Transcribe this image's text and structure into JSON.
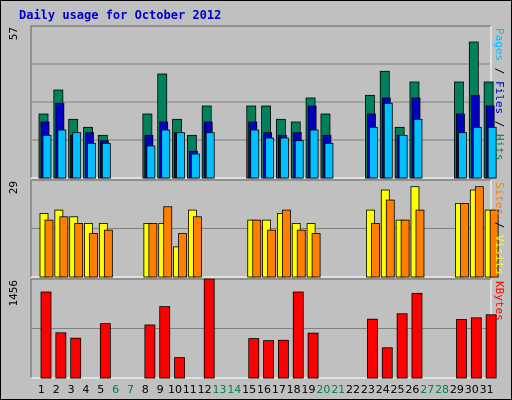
{
  "title": "Daily usage for October 2012",
  "colors": {
    "hits": "#00805c",
    "files": "#0000c0",
    "pages": "#00c0ff",
    "visits": "#ffff00",
    "sites": "#ff8000",
    "kbytes": "#ff0000",
    "weekday": "#000000",
    "weekend": "#008040"
  },
  "chart_data": [
    {
      "type": "bar",
      "categories": [
        "1",
        "2",
        "3",
        "4",
        "5",
        "6",
        "7",
        "8",
        "9",
        "10",
        "11",
        "12",
        "13",
        "14",
        "15",
        "16",
        "17",
        "18",
        "19",
        "20",
        "21",
        "22",
        "23",
        "24",
        "25",
        "26",
        "27",
        "28",
        "29",
        "30",
        "31"
      ],
      "weekend_days": [
        "6",
        "7",
        "13",
        "14",
        "20",
        "21",
        "27",
        "28"
      ],
      "ymax_label": "57",
      "ylim": [
        0,
        57
      ],
      "right_label": [
        "Pages",
        "Files",
        "Hits"
      ],
      "series": [
        {
          "name": "Hits",
          "values": [
            24,
            33,
            22,
            19,
            16,
            0,
            0,
            24,
            39,
            22,
            16,
            27,
            0,
            0,
            27,
            27,
            22,
            21,
            30,
            24,
            0,
            0,
            31,
            40,
            19,
            36,
            0,
            0,
            36,
            51,
            36
          ]
        },
        {
          "name": "Files",
          "values": [
            21,
            28,
            16,
            17,
            14,
            0,
            0,
            16,
            21,
            17,
            10,
            21,
            0,
            0,
            21,
            17,
            16,
            17,
            27,
            16,
            0,
            0,
            24,
            30,
            16,
            30,
            0,
            0,
            24,
            31,
            27
          ]
        },
        {
          "name": "Pages",
          "values": [
            16,
            18,
            17,
            13,
            13,
            0,
            0,
            12,
            18,
            17,
            9,
            17,
            0,
            0,
            18,
            15,
            15,
            14,
            18,
            13,
            0,
            0,
            19,
            28,
            16,
            22,
            0,
            0,
            17,
            19,
            19
          ]
        }
      ]
    },
    {
      "type": "bar",
      "ymax_label": "29",
      "ylim": [
        0,
        29
      ],
      "right_label": [
        "Sites",
        "Visits"
      ],
      "series": [
        {
          "name": "Visits",
          "values": [
            19,
            20,
            18,
            16,
            16,
            0,
            0,
            16,
            16,
            9,
            20,
            0,
            0,
            0,
            17,
            17,
            19,
            16,
            16,
            0,
            0,
            0,
            20,
            26,
            17,
            27,
            0,
            0,
            22,
            26,
            20
          ]
        },
        {
          "name": "Sites",
          "values": [
            17,
            18,
            16,
            13,
            14,
            0,
            0,
            16,
            21,
            13,
            18,
            0,
            0,
            0,
            17,
            14,
            20,
            14,
            13,
            0,
            0,
            0,
            16,
            23,
            17,
            20,
            0,
            0,
            22,
            27,
            20
          ]
        }
      ]
    },
    {
      "type": "bar",
      "ymax_label": "1456",
      "ylim": [
        0,
        1456
      ],
      "right_label": [
        "KBytes"
      ],
      "series": [
        {
          "name": "KBytes",
          "values": [
            1265,
            665,
            585,
            0,
            800,
            0,
            0,
            780,
            1050,
            300,
            0,
            1456,
            0,
            0,
            580,
            550,
            555,
            1265,
            660,
            0,
            0,
            0,
            865,
            445,
            945,
            1245,
            0,
            0,
            860,
            885,
            930
          ]
        }
      ]
    }
  ]
}
